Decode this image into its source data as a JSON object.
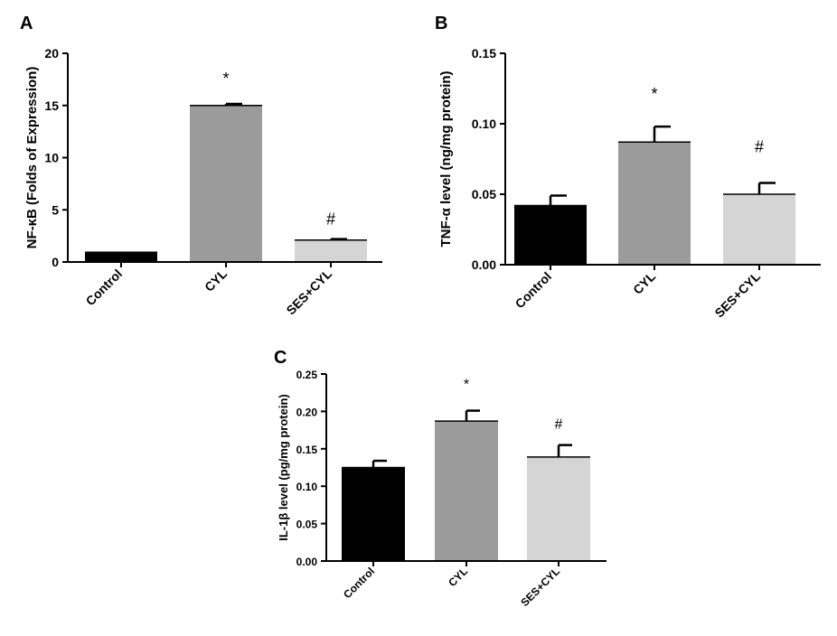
{
  "chart_data": [
    {
      "panel": "A",
      "type": "bar",
      "categories": [
        "Control",
        "CYL",
        "SES+CYL"
      ],
      "values": [
        1.0,
        15.0,
        2.1
      ],
      "errors": [
        0.0,
        0.15,
        0.1
      ],
      "annotations": [
        "",
        "*",
        "#"
      ],
      "ylabel": "NF-κB (Folds of Expression)",
      "xlabel": "",
      "ylim": [
        0,
        20
      ],
      "yticks": [
        "0",
        "5",
        "10",
        "15",
        "20"
      ],
      "colors": [
        "#000000",
        "#9b9b9b",
        "#d5d5d5"
      ]
    },
    {
      "panel": "B",
      "type": "bar",
      "categories": [
        "Control",
        "CYL",
        "SES+CYL"
      ],
      "values": [
        0.042,
        0.087,
        0.05
      ],
      "errors": [
        0.007,
        0.011,
        0.008
      ],
      "annotations": [
        "",
        "*",
        "#"
      ],
      "ylabel": "TNF-α level (ng/mg protein)",
      "xlabel": "",
      "ylim": [
        0,
        0.15
      ],
      "yticks": [
        "0.00",
        "0.05",
        "0.10",
        "0.15"
      ],
      "colors": [
        "#000000",
        "#9b9b9b",
        "#d5d5d5"
      ]
    },
    {
      "panel": "C",
      "type": "bar",
      "categories": [
        "Control",
        "CYL",
        "SES+CYL"
      ],
      "values": [
        0.125,
        0.187,
        0.139
      ],
      "errors": [
        0.009,
        0.014,
        0.016
      ],
      "annotations": [
        "",
        "*",
        "#"
      ],
      "ylabel": "IL-1β level (pg/mg protein)",
      "xlabel": "",
      "ylim": [
        0,
        0.25
      ],
      "yticks": [
        "0.00",
        "0.05",
        "0.10",
        "0.15",
        "0.20",
        "0.25"
      ],
      "colors": [
        "#000000",
        "#9b9b9b",
        "#d5d5d5"
      ]
    }
  ]
}
